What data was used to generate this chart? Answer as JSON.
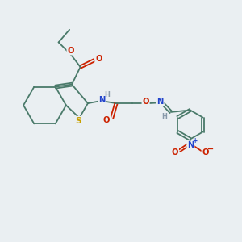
{
  "bg_color": "#eaeff2",
  "bond_color": "#4a7a6a",
  "atom_colors": {
    "C": "#4a7a6a",
    "S": "#c8a000",
    "N": "#2244cc",
    "O": "#cc2200",
    "H": "#8899aa"
  },
  "lw": 1.3,
  "fs": 7.2,
  "fs_small": 6.0
}
